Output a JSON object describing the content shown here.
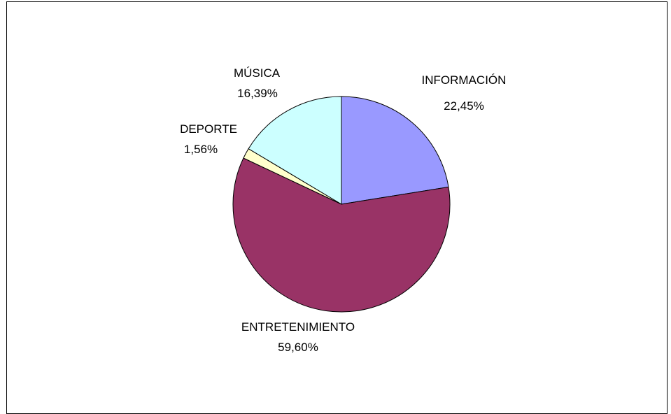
{
  "chart_data": {
    "type": "pie",
    "title": "",
    "categories": [
      "INFORMACIÓN",
      "ENTRETENIMIENTO",
      "DEPORTE",
      "MÚSICA"
    ],
    "values": [
      22.45,
      59.6,
      1.56,
      16.39
    ],
    "value_labels": [
      "22,45%",
      "59,60%",
      "1,56%",
      "16,39%"
    ],
    "colors": [
      "#9999ff",
      "#993366",
      "#ffffcc",
      "#ccffff"
    ],
    "start_angle_deg": 0,
    "direction": "clockwise",
    "legend": "none"
  }
}
